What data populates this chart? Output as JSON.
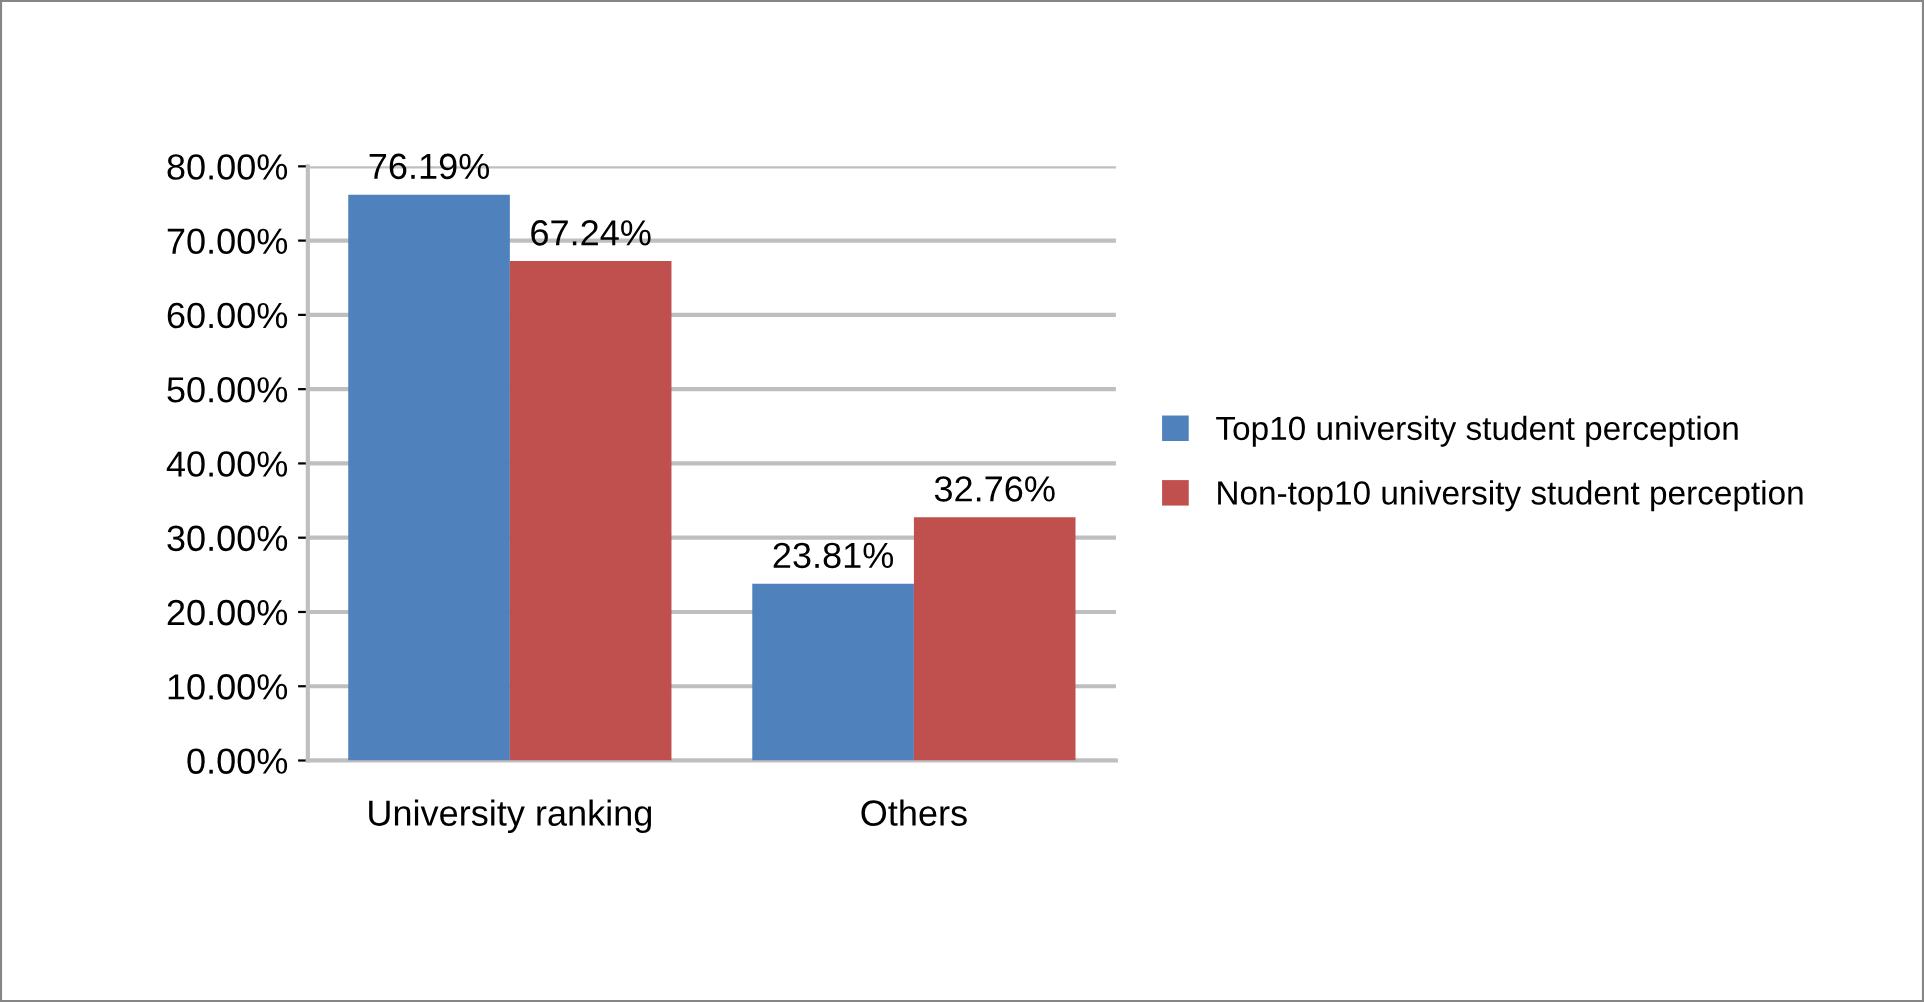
{
  "chart_data": {
    "type": "bar",
    "categories": [
      "University ranking",
      "Others"
    ],
    "series": [
      {
        "name": "Top10 university student perception",
        "color": "#4f81bd",
        "values": [
          76.19,
          23.81
        ],
        "value_labels": [
          "76.19%",
          "23.81%"
        ]
      },
      {
        "name": "Non-top10 university student perception",
        "color": "#c0504d",
        "values": [
          67.24,
          32.76
        ],
        "value_labels": [
          "67.24%",
          "32.76%"
        ]
      }
    ],
    "ylim": [
      0,
      80
    ],
    "yticks": [
      {
        "value": 0,
        "label": "0.00%"
      },
      {
        "value": 10,
        "label": "10.00%"
      },
      {
        "value": 20,
        "label": "20.00%"
      },
      {
        "value": 30,
        "label": "30.00%"
      },
      {
        "value": 40,
        "label": "40.00%"
      },
      {
        "value": 50,
        "label": "50.00%"
      },
      {
        "value": 60,
        "label": "60.00%"
      },
      {
        "value": 70,
        "label": "70.00%"
      },
      {
        "value": 80,
        "label": "80.00%"
      }
    ],
    "grid": "y",
    "legend": "right"
  }
}
